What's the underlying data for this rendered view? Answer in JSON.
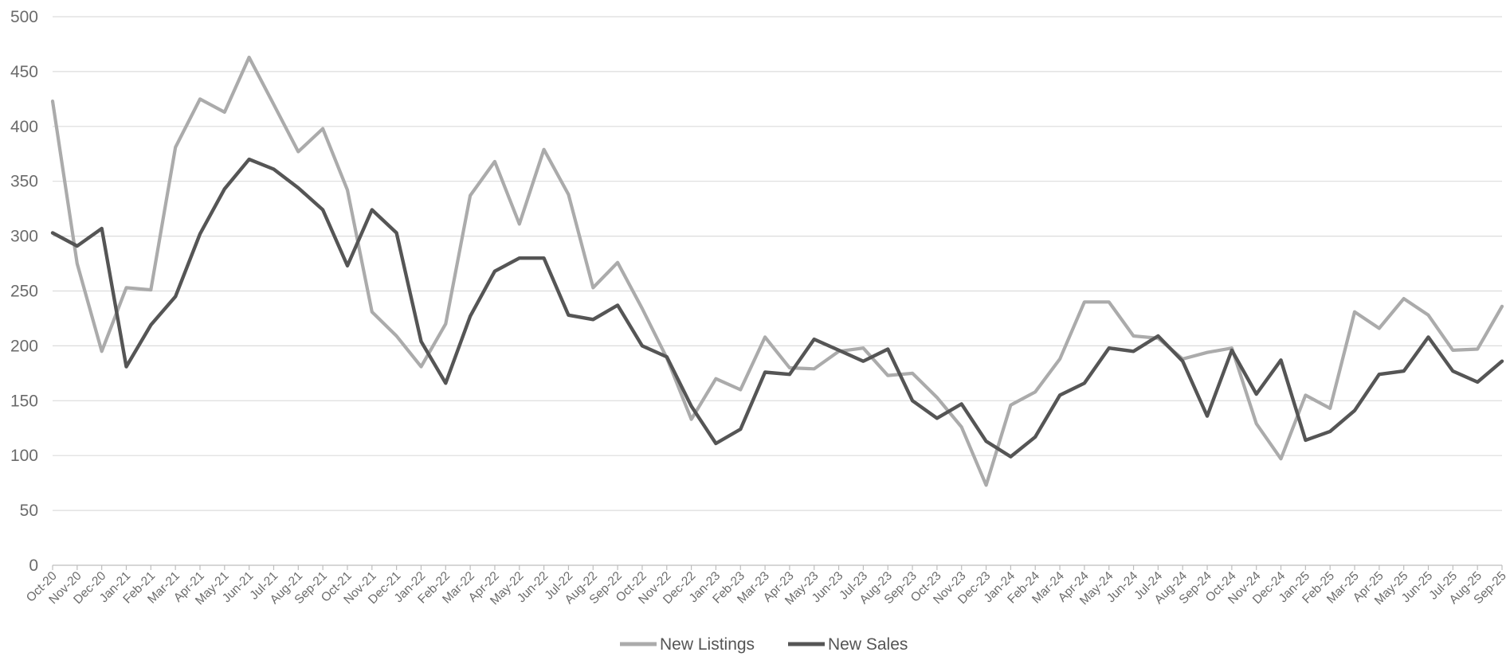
{
  "chart_data": {
    "type": "line",
    "categories": [
      "Oct-20",
      "Nov-20",
      "Dec-20",
      "Jan-21",
      "Feb-21",
      "Mar-21",
      "Apr-21",
      "May-21",
      "Jun-21",
      "Jul-21",
      "Aug-21",
      "Sep-21",
      "Oct-21",
      "Nov-21",
      "Dec-21",
      "Jan-22",
      "Feb-22",
      "Mar-22",
      "Apr-22",
      "May-22",
      "Jun-22",
      "Jul-22",
      "Aug-22",
      "Sep-22",
      "Oct-22",
      "Nov-22",
      "Dec-22",
      "Jan-23",
      "Feb-23",
      "Mar-23",
      "Apr-23",
      "May-23",
      "Jun-23",
      "Jul-23",
      "Aug-23",
      "Sep-23",
      "Oct-23",
      "Nov-23",
      "Dec-23",
      "Jan-24",
      "Feb-24",
      "Mar-24",
      "Apr-24",
      "May-24",
      "Jun-24",
      "Jul-24",
      "Aug-24",
      "Sep-24",
      "Oct-24",
      "Nov-24",
      "Dec-24",
      "Jan-25",
      "Feb-25",
      "Mar-25",
      "Apr-25",
      "May-25",
      "Jun-25",
      "Jul-25",
      "Aug-25",
      "Sep-25"
    ],
    "series": [
      {
        "name": "New Listings",
        "color": "#ababab",
        "values": [
          423,
          275,
          195,
          253,
          251,
          381,
          425,
          413,
          463,
          420,
          377,
          398,
          342,
          231,
          209,
          181,
          220,
          337,
          368,
          311,
          379,
          338,
          253,
          276,
          234,
          189,
          133,
          170,
          160,
          208,
          180,
          179,
          195,
          198,
          173,
          175,
          153,
          126,
          73,
          146,
          158,
          188,
          240,
          240,
          209,
          207,
          188,
          194,
          198,
          129,
          97,
          155,
          143,
          231,
          216,
          243,
          228,
          196,
          197,
          236
        ]
      },
      {
        "name": "New Sales",
        "color": "#555555",
        "values": [
          303,
          291,
          307,
          181,
          219,
          245,
          302,
          343,
          370,
          361,
          344,
          324,
          273,
          324,
          303,
          204,
          166,
          227,
          268,
          280,
          280,
          228,
          224,
          237,
          200,
          190,
          145,
          111,
          124,
          176,
          174,
          206,
          196,
          186,
          197,
          150,
          134,
          147,
          113,
          99,
          117,
          155,
          166,
          198,
          195,
          209,
          186,
          136,
          196,
          156,
          187,
          114,
          122,
          141,
          174,
          177,
          208,
          177,
          167,
          186
        ]
      }
    ],
    "ylim": [
      0,
      500
    ],
    "yticks": [
      0,
      50,
      100,
      150,
      200,
      250,
      300,
      350,
      400,
      450,
      500
    ],
    "grid": true,
    "legend": "bottom-center"
  }
}
